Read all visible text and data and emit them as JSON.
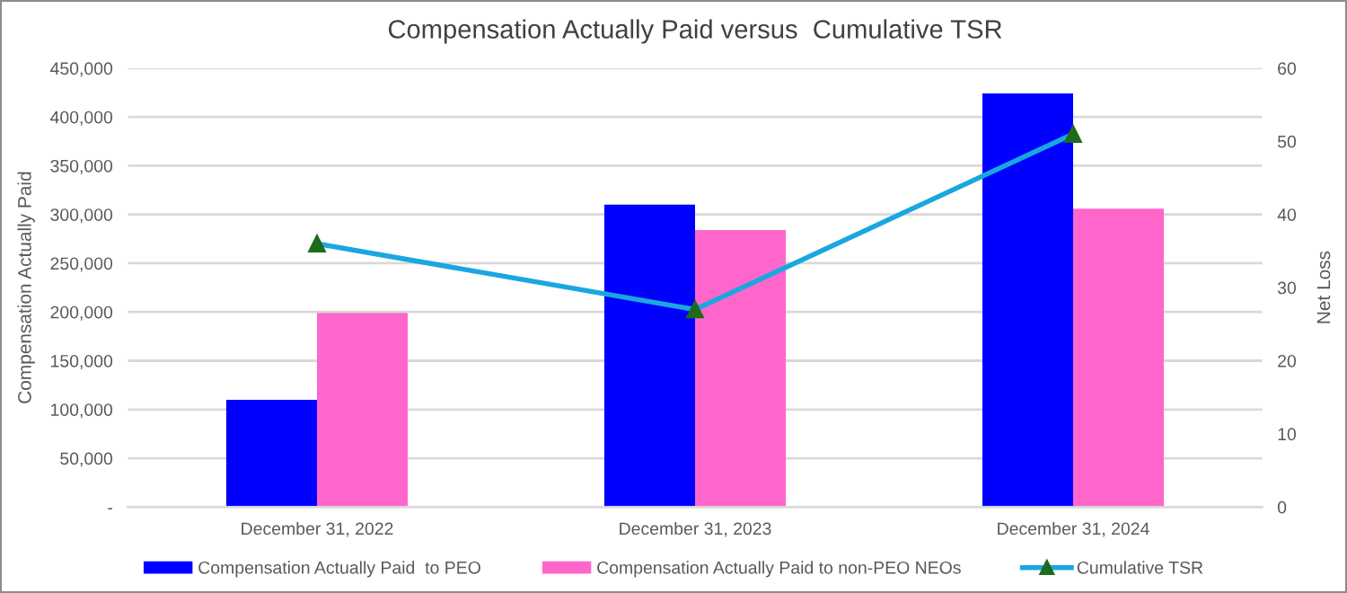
{
  "chart_data": {
    "type": "bar",
    "title": "Compensation Actually Paid versus  Cumulative TSR",
    "ylabel": "Compensation Actually Paid",
    "y2label": "Net Loss",
    "categories": [
      "December 31, 2022",
      "December 31, 2023",
      "December 31, 2024"
    ],
    "series": [
      {
        "name": "Compensation Actually Paid  to PEO",
        "color": "#0000ff",
        "values": [
          110000,
          310000,
          424000
        ]
      },
      {
        "name": "Compensation Actually Paid to non-PEO NEOs",
        "color": "#ff66cc",
        "values": [
          199000,
          284000,
          306000
        ]
      },
      {
        "name": "Cumulative TSR",
        "type": "line",
        "axis": "y2",
        "color": "#1aa7e0",
        "values": [
          36,
          27,
          51
        ]
      }
    ],
    "ylim": [
      0,
      450000
    ],
    "yticks": [
      {
        "value": 0,
        "label": "-"
      },
      {
        "value": 50000,
        "label": "50,000"
      },
      {
        "value": 100000,
        "label": "100,000"
      },
      {
        "value": 150000,
        "label": "150,000"
      },
      {
        "value": 200000,
        "label": "200,000"
      },
      {
        "value": 250000,
        "label": "250,000"
      },
      {
        "value": 300000,
        "label": "300,000"
      },
      {
        "value": 350000,
        "label": "350,000"
      },
      {
        "value": 400000,
        "label": "400,000"
      },
      {
        "value": 450000,
        "label": "450,000"
      }
    ],
    "y2lim": [
      0,
      60
    ],
    "y2ticks": [
      0,
      10,
      20,
      30,
      40,
      50,
      60
    ],
    "grid": "y",
    "legend": "bottom",
    "marker": "triangle",
    "line_style": "solid"
  }
}
